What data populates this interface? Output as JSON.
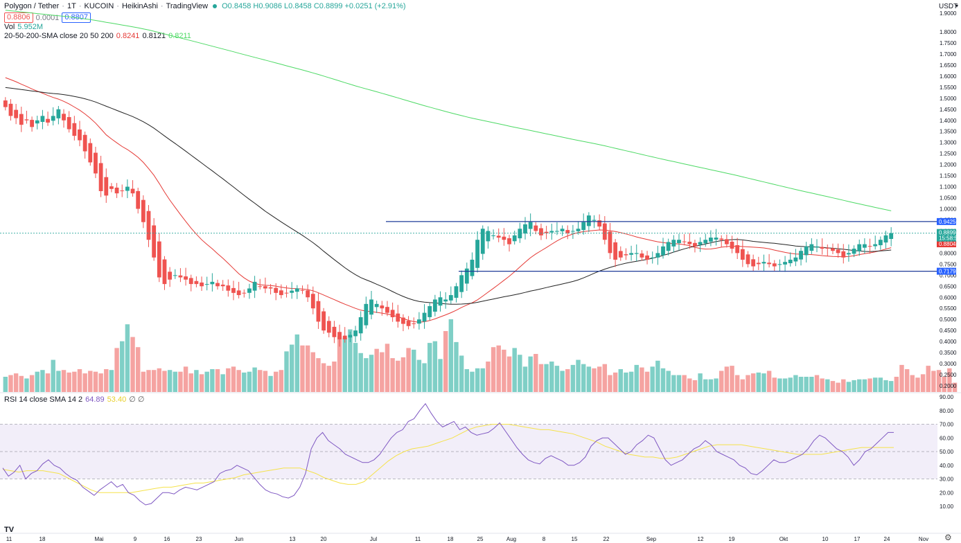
{
  "header": {
    "symbol": "Polygon / Tether",
    "interval": "1T",
    "exchange": "KUCOIN",
    "chart_style": "HeikinAshi",
    "brand": "TradingView",
    "ohlc": "O0.8458 H0.9086 L0.8458 C0.8899 +0.0251 (+2.91%)",
    "bid": "0.8806",
    "spread": "0.0001",
    "ask": "0.8807",
    "currency": "USDT"
  },
  "volume_legend": {
    "label": "Vol",
    "value": "5.952M"
  },
  "sma_legend": {
    "label": "20-50-200-SMA close 20 50 200",
    "sma20": "0.8241",
    "sma50": "0.8121",
    "sma200": "0.8211"
  },
  "rsi_legend": {
    "label": "RSI 14 close SMA 14 2",
    "rsi": "64.89",
    "sma": "53.40",
    "extra": "∅ ∅"
  },
  "colors": {
    "up": "#26a69a",
    "down": "#ef5350",
    "up_vol": "#7fcfc6",
    "down_vol": "#f5a3a1",
    "sma20": "#e53935",
    "sma50": "#222222",
    "sma200": "#4cd964",
    "rsi": "#7e57c2",
    "rsi_sma": "#f5e24a",
    "hline": "#1f3c98"
  },
  "price_labels": {
    "hline_upper": "0.9425",
    "hline_lower": "0.7179",
    "last_price": "0.8899",
    "last_sub": "15:58:50",
    "sma_tag": "0.8804"
  },
  "x_axis": [
    "11",
    "18",
    "Mai",
    "9",
    "16",
    "23",
    "Jun",
    "13",
    "20",
    "Jul",
    "11",
    "18",
    "25",
    "Aug",
    "8",
    "15",
    "22",
    "Sep",
    "12",
    "19",
    "Okt",
    "10",
    "17",
    "24",
    "Nov"
  ],
  "chart_data": [
    {
      "type": "candlestick",
      "title": "Polygon / Tether · 1T · KUCOIN · HeikinAshi",
      "y_axis_ticks": [
        "1.9000",
        "1.8000",
        "1.7500",
        "1.7000",
        "1.6500",
        "1.6000",
        "1.5500",
        "1.5000",
        "1.4500",
        "1.4000",
        "1.3500",
        "1.3000",
        "1.2500",
        "1.2000",
        "1.1500",
        "1.1000",
        "1.0500",
        "1.0000",
        "0.9500",
        "0.9000",
        "0.8500",
        "0.8000",
        "0.7500",
        "0.7000",
        "0.6500",
        "0.6000",
        "0.5500",
        "0.5000",
        "0.4500",
        "0.4000",
        "0.3500",
        "0.3000",
        "0.2500",
        "0.2000"
      ],
      "series_close": [
        1.46,
        1.42,
        1.41,
        1.38,
        1.4,
        1.37,
        1.4,
        1.42,
        1.39,
        1.42,
        1.45,
        1.4,
        1.36,
        1.33,
        1.31,
        1.26,
        1.21,
        1.16,
        1.08,
        1.06,
        1.09,
        1.07,
        1.08,
        1.1,
        1.07,
        1.0,
        0.94,
        0.86,
        0.78,
        0.69,
        0.66,
        0.68,
        0.7,
        0.69,
        0.68,
        0.66,
        0.66,
        0.65,
        0.66,
        0.67,
        0.65,
        0.65,
        0.63,
        0.62,
        0.61,
        0.62,
        0.64,
        0.67,
        0.65,
        0.64,
        0.64,
        0.62,
        0.61,
        0.62,
        0.63,
        0.64,
        0.63,
        0.6,
        0.55,
        0.49,
        0.45,
        0.44,
        0.42,
        0.41,
        0.41,
        0.43,
        0.45,
        0.51,
        0.57,
        0.59,
        0.57,
        0.55,
        0.53,
        0.51,
        0.49,
        0.48,
        0.47,
        0.48,
        0.5,
        0.53,
        0.56,
        0.59,
        0.6,
        0.59,
        0.61,
        0.65,
        0.7,
        0.73,
        0.77,
        0.86,
        0.91,
        0.9,
        0.88,
        0.87,
        0.86,
        0.84,
        0.88,
        0.91,
        0.93,
        0.94,
        0.9,
        0.88,
        0.89,
        0.9,
        0.9,
        0.91,
        0.89,
        0.9,
        0.91,
        0.94,
        0.97,
        0.95,
        0.92,
        0.86,
        0.8,
        0.77,
        0.78,
        0.79,
        0.8,
        0.8,
        0.78,
        0.77,
        0.78,
        0.8,
        0.83,
        0.85,
        0.86,
        0.86,
        0.85,
        0.84,
        0.83,
        0.85,
        0.86,
        0.87,
        0.87,
        0.86,
        0.84,
        0.82,
        0.8,
        0.77,
        0.75,
        0.74,
        0.75,
        0.76,
        0.75,
        0.74,
        0.75,
        0.76,
        0.77,
        0.78,
        0.81,
        0.83,
        0.84,
        0.83,
        0.82,
        0.82,
        0.81,
        0.8,
        0.78,
        0.8,
        0.82,
        0.84,
        0.84,
        0.83,
        0.84,
        0.86,
        0.88,
        0.89
      ],
      "levels": {
        "resistance": 0.9425,
        "support": 0.7179,
        "last": 0.8899
      }
    },
    {
      "type": "bar",
      "title": "Vol",
      "values": [
        18,
        20,
        22,
        19,
        16,
        20,
        24,
        26,
        22,
        38,
        25,
        26,
        23,
        24,
        27,
        22,
        25,
        24,
        22,
        27,
        26,
        52,
        60,
        80,
        65,
        53,
        24,
        26,
        26,
        28,
        25,
        26,
        24,
        24,
        30,
        22,
        26,
        21,
        24,
        27,
        27,
        21,
        28,
        30,
        26,
        23,
        24,
        29,
        26,
        25,
        19,
        24,
        26,
        48,
        56,
        68,
        55,
        55,
        47,
        40,
        34,
        31,
        36,
        66,
        64,
        74,
        58,
        46,
        40,
        44,
        51,
        47,
        57,
        40,
        37,
        41,
        52,
        50,
        38,
        34,
        58,
        60,
        39,
        72,
        86,
        59,
        43,
        27,
        24,
        28,
        28,
        36,
        53,
        55,
        50,
        42,
        52,
        44,
        30,
        42,
        45,
        33,
        33,
        36,
        31,
        25,
        27,
        32,
        38,
        33,
        30,
        28,
        30,
        33,
        20,
        23,
        27,
        23,
        24,
        32,
        29,
        24,
        30,
        37,
        28,
        25,
        20,
        20,
        20,
        16,
        14,
        22,
        15,
        15,
        16,
        25,
        30,
        31,
        20,
        15,
        20,
        22,
        23,
        22,
        25,
        17,
        16,
        16,
        17,
        20,
        18,
        18,
        18,
        20,
        16,
        15,
        13,
        11,
        15,
        12,
        14,
        15,
        15,
        16,
        17,
        17,
        14,
        13,
        18,
        32,
        27,
        20,
        17,
        21,
        31,
        25,
        26,
        18,
        28,
        11
      ]
    },
    {
      "type": "line",
      "title": "RSI 14 close SMA 14 2",
      "y_axis_ticks": [
        "90.00",
        "80.00",
        "70.00",
        "60.00",
        "50.00",
        "40.00",
        "30.00",
        "20.00",
        "10.00"
      ],
      "band": [
        30,
        70
      ],
      "rsi": [
        38,
        32,
        35,
        40,
        30,
        34,
        36,
        41,
        44,
        40,
        38,
        34,
        31,
        29,
        24,
        21,
        18,
        22,
        25,
        28,
        24,
        26,
        20,
        18,
        14,
        11,
        12,
        16,
        20,
        20,
        19,
        22,
        24,
        23,
        22,
        24,
        26,
        28,
        34,
        36,
        37,
        40,
        38,
        36,
        31,
        26,
        22,
        20,
        19,
        17,
        16,
        18,
        24,
        34,
        52,
        60,
        64,
        58,
        55,
        52,
        48,
        46,
        44,
        42,
        42,
        44,
        48,
        54,
        60,
        64,
        66,
        72,
        74,
        80,
        85,
        78,
        72,
        68,
        70,
        72,
        66,
        68,
        64,
        62,
        63,
        64,
        67,
        71,
        65,
        59,
        53,
        48,
        44,
        42,
        41,
        45,
        47,
        45,
        43,
        40,
        40,
        42,
        46,
        54,
        58,
        60,
        60,
        56,
        52,
        48,
        50,
        55,
        58,
        62,
        60,
        52,
        44,
        40,
        42,
        44,
        48,
        52,
        54,
        58,
        55,
        50,
        48,
        46,
        44,
        40,
        38,
        34,
        33,
        36,
        40,
        44,
        42,
        42,
        44,
        46,
        48,
        52,
        58,
        62,
        60,
        56,
        52,
        50,
        46,
        40,
        44,
        50,
        52,
        56,
        60,
        64,
        64
      ],
      "rsi_sma": [
        37,
        36,
        35,
        36,
        36,
        36,
        35,
        34,
        31,
        28,
        25,
        22,
        20,
        20,
        20,
        20,
        20,
        21,
        22,
        23,
        24,
        24,
        25,
        26,
        27,
        27,
        28,
        29,
        30,
        31,
        33,
        34,
        35,
        36,
        37,
        38,
        38,
        38,
        36,
        34,
        31,
        29,
        27,
        26,
        26,
        28,
        33,
        38,
        43,
        47,
        50,
        52,
        53,
        54,
        56,
        58,
        60,
        63,
        66,
        68,
        69,
        70,
        70,
        70,
        69,
        68,
        67,
        66,
        66,
        65,
        64,
        63,
        61,
        59,
        57,
        54,
        52,
        50,
        48,
        47,
        46,
        46,
        45,
        45,
        46,
        48,
        50,
        52,
        54,
        55,
        55,
        55,
        55,
        54,
        53,
        52,
        51,
        50,
        49,
        48,
        48,
        48,
        48,
        49,
        50,
        51,
        52,
        53,
        53,
        53,
        53,
        53
      ]
    }
  ]
}
